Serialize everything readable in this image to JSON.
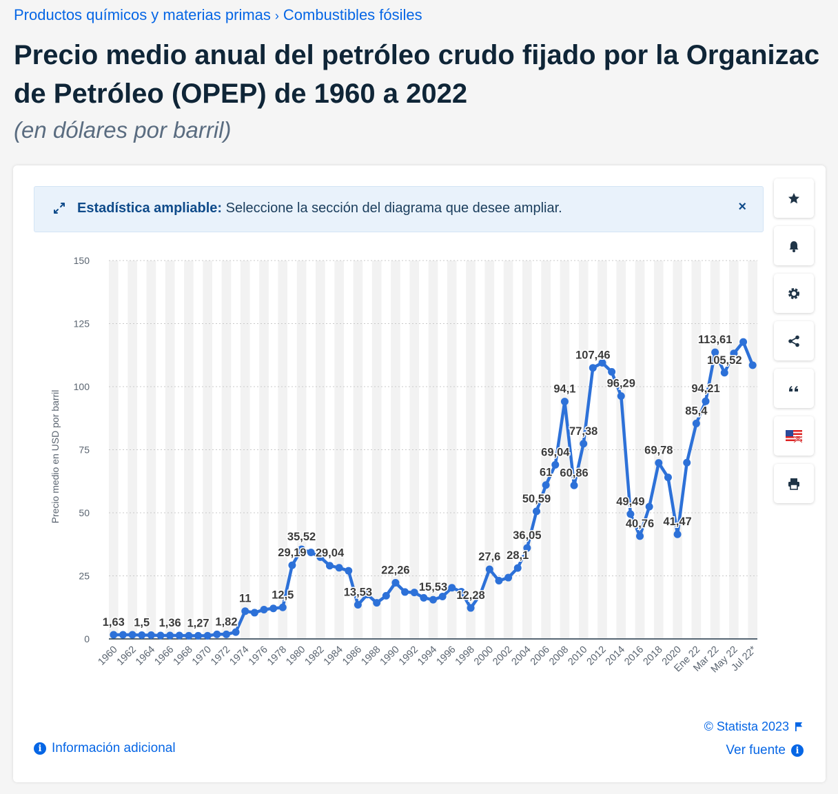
{
  "breadcrumb": {
    "item1": "Productos químicos y materias primas",
    "separator": "›",
    "item2": "Combustibles fósiles"
  },
  "title": {
    "line1": "Precio medio anual del petróleo crudo fijado por la Organizac",
    "line2": "de Petróleo (OPEP) de 1960 a 2022"
  },
  "subtitle": "(en dólares por barril)",
  "banner": {
    "bold": "Estadística ampliable:",
    "text": " Seleccione la sección del diagrama que desee ampliar.",
    "close": "×"
  },
  "sidebar": {
    "icons": [
      "star-icon",
      "bell-icon",
      "gear-icon",
      "share-icon",
      "quote-icon",
      "flag-icon",
      "print-icon"
    ]
  },
  "footer": {
    "info": "Información adicional",
    "copyright": "© Statista 2023",
    "source": "Ver fuente"
  },
  "colors": {
    "line": "#2d71d8",
    "accent": "#0666e5",
    "grid": "#c8c8c8",
    "band": "#f2f2f2"
  },
  "chart_data": {
    "type": "line",
    "ylabel": "Precio medio en USD por barril",
    "ylim": [
      0,
      150
    ],
    "yticks": [
      0,
      25,
      50,
      75,
      100,
      125,
      150
    ],
    "grid": true,
    "categories": [
      "1960",
      "1961",
      "1962",
      "1963",
      "1964",
      "1965",
      "1966",
      "1967",
      "1968",
      "1969",
      "1970",
      "1971",
      "1972",
      "1973",
      "1974",
      "1975",
      "1976",
      "1977",
      "1978",
      "1979",
      "1980",
      "1981",
      "1982",
      "1983",
      "1984",
      "1985",
      "1986",
      "1987",
      "1988",
      "1989",
      "1990",
      "1991",
      "1992",
      "1993",
      "1994",
      "1995",
      "1996",
      "1997",
      "1998",
      "1999",
      "2000",
      "2001",
      "2002",
      "2003",
      "2004",
      "2005",
      "2006",
      "2007",
      "2008",
      "2009",
      "2010",
      "2011",
      "2012",
      "2013",
      "2014",
      "2015",
      "2016",
      "2017",
      "2018",
      "2019",
      "2020",
      "2021",
      "Ene 22",
      "Feb 22",
      "Mar 22",
      "Abr 22",
      "May 22",
      "Jun 22",
      "Jul 22*"
    ],
    "tick_labels": [
      "1960",
      "1962",
      "1964",
      "1966",
      "1968",
      "1970",
      "1972",
      "1974",
      "1976",
      "1978",
      "1980",
      "1982",
      "1984",
      "1986",
      "1988",
      "1990",
      "1992",
      "1994",
      "1996",
      "1998",
      "2000",
      "2002",
      "2004",
      "2006",
      "2008",
      "2010",
      "2012",
      "2014",
      "2016",
      "2018",
      "2020",
      "Ene 22",
      "Mar 22",
      "May 22",
      "Jul 22*"
    ],
    "values": [
      1.63,
      1.63,
      1.63,
      1.5,
      1.5,
      1.36,
      1.36,
      1.36,
      1.27,
      1.27,
      1.27,
      1.82,
      1.82,
      2.7,
      11,
      10.4,
      11.6,
      12.1,
      12.5,
      29.19,
      35.52,
      34.3,
      32.4,
      29.04,
      28.2,
      27,
      13.53,
      17.6,
      14.3,
      17.1,
      22.26,
      18.6,
      18.4,
      16.3,
      15.53,
      16.8,
      20.3,
      18.7,
      12.28,
      17.5,
      27.6,
      23.1,
      24.3,
      28.1,
      36.05,
      50.59,
      61,
      69.04,
      94.1,
      60.86,
      77.38,
      107.46,
      109.45,
      105.87,
      96.29,
      49.49,
      40.76,
      52.43,
      69.78,
      64.04,
      41.47,
      69.89,
      85.4,
      94.21,
      113.61,
      105.52,
      113.2,
      117.72,
      108.5
    ],
    "data_labels": [
      {
        "i": 0,
        "text": "1,63"
      },
      {
        "i": 3,
        "text": "1,5"
      },
      {
        "i": 6,
        "text": "1,36"
      },
      {
        "i": 9,
        "text": "1,27"
      },
      {
        "i": 12,
        "text": "1,82"
      },
      {
        "i": 14,
        "text": "11"
      },
      {
        "i": 18,
        "text": "12,5"
      },
      {
        "i": 19,
        "text": "29,19"
      },
      {
        "i": 20,
        "text": "35,52"
      },
      {
        "i": 23,
        "text": "29,04"
      },
      {
        "i": 26,
        "text": "13,53"
      },
      {
        "i": 30,
        "text": "22,26"
      },
      {
        "i": 34,
        "text": "15,53"
      },
      {
        "i": 38,
        "text": "12,28"
      },
      {
        "i": 40,
        "text": "27,6"
      },
      {
        "i": 43,
        "text": "28,1"
      },
      {
        "i": 44,
        "text": "36,05"
      },
      {
        "i": 45,
        "text": "50,59"
      },
      {
        "i": 46,
        "text": "61"
      },
      {
        "i": 47,
        "text": "69,04"
      },
      {
        "i": 48,
        "text": "94,1"
      },
      {
        "i": 49,
        "text": "60,86"
      },
      {
        "i": 50,
        "text": "77,38"
      },
      {
        "i": 51,
        "text": "107,46"
      },
      {
        "i": 54,
        "text": "96,29"
      },
      {
        "i": 55,
        "text": "49,49"
      },
      {
        "i": 56,
        "text": "40,76"
      },
      {
        "i": 58,
        "text": "69,78"
      },
      {
        "i": 60,
        "text": "41,47"
      },
      {
        "i": 62,
        "text": "85,4"
      },
      {
        "i": 63,
        "text": "94,21"
      },
      {
        "i": 64,
        "text": "113,61"
      },
      {
        "i": 65,
        "text": "105,52"
      }
    ]
  }
}
